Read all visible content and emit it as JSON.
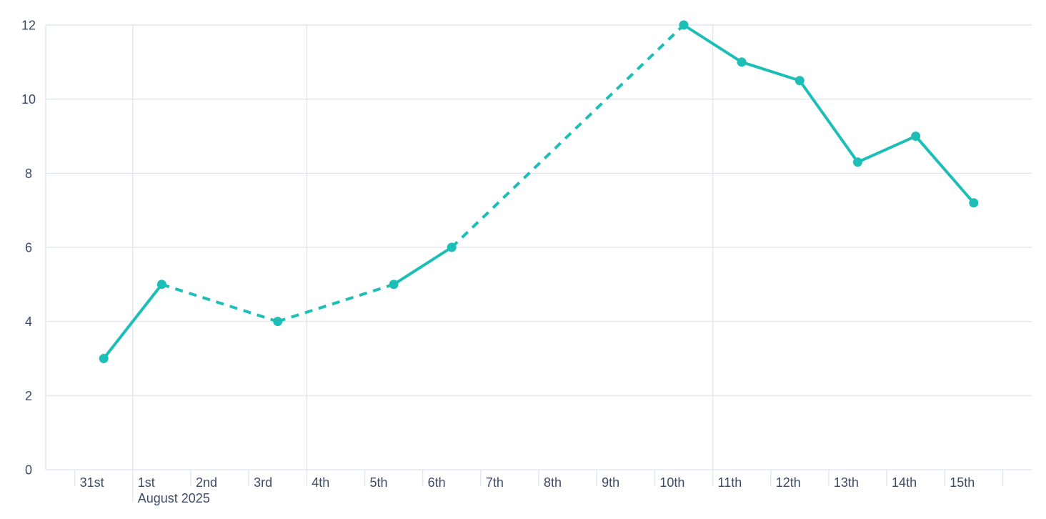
{
  "chart_data": {
    "type": "line",
    "title": "",
    "legend": "none",
    "background_color": "#ffffff",
    "colors": {
      "series": "#1dbeb8",
      "grid": "#e4e7f0",
      "axis_text": "#3e4b66"
    },
    "y_axis": {
      "ticks": [
        0,
        2,
        4,
        6,
        8,
        10,
        12
      ],
      "range": [
        0,
        12
      ],
      "gridlines": "horizontal at every tick"
    },
    "x_axis": {
      "tick_labels": [
        "31st",
        "1st",
        "2nd",
        "3rd",
        "4th",
        "5th",
        "6th",
        "7th",
        "8th",
        "9th",
        "10th",
        "11th",
        "12th",
        "13th",
        "14th",
        "15th"
      ],
      "month_label": "August 2025",
      "month_label_under": "1st",
      "vertical_gridline_tick_indices": [
        1,
        4,
        11
      ],
      "long_tick_index": 1,
      "extra_unlabeled_tick_after_last": true
    },
    "series": [
      {
        "name": "daily-values",
        "color": "#1dbeb8",
        "marker": "circle",
        "gap_rule": "segments that span missing days are dashed",
        "points": [
          {
            "day_index": 0,
            "label": "31st",
            "value": 3
          },
          {
            "day_index": 1,
            "label": "1st",
            "value": 5
          },
          {
            "day_index": 3,
            "label": "3rd",
            "value": 4
          },
          {
            "day_index": 5,
            "label": "5th",
            "value": 5
          },
          {
            "day_index": 6,
            "label": "6th",
            "value": 6
          },
          {
            "day_index": 10,
            "label": "10th",
            "value": 12
          },
          {
            "day_index": 11,
            "label": "11th",
            "value": 11
          },
          {
            "day_index": 12,
            "label": "12th",
            "value": 10.5
          },
          {
            "day_index": 13,
            "label": "13th",
            "value": 8.3
          },
          {
            "day_index": 14,
            "label": "14th",
            "value": 9
          },
          {
            "day_index": 15,
            "label": "15th",
            "value": 7.2
          }
        ]
      }
    ]
  }
}
